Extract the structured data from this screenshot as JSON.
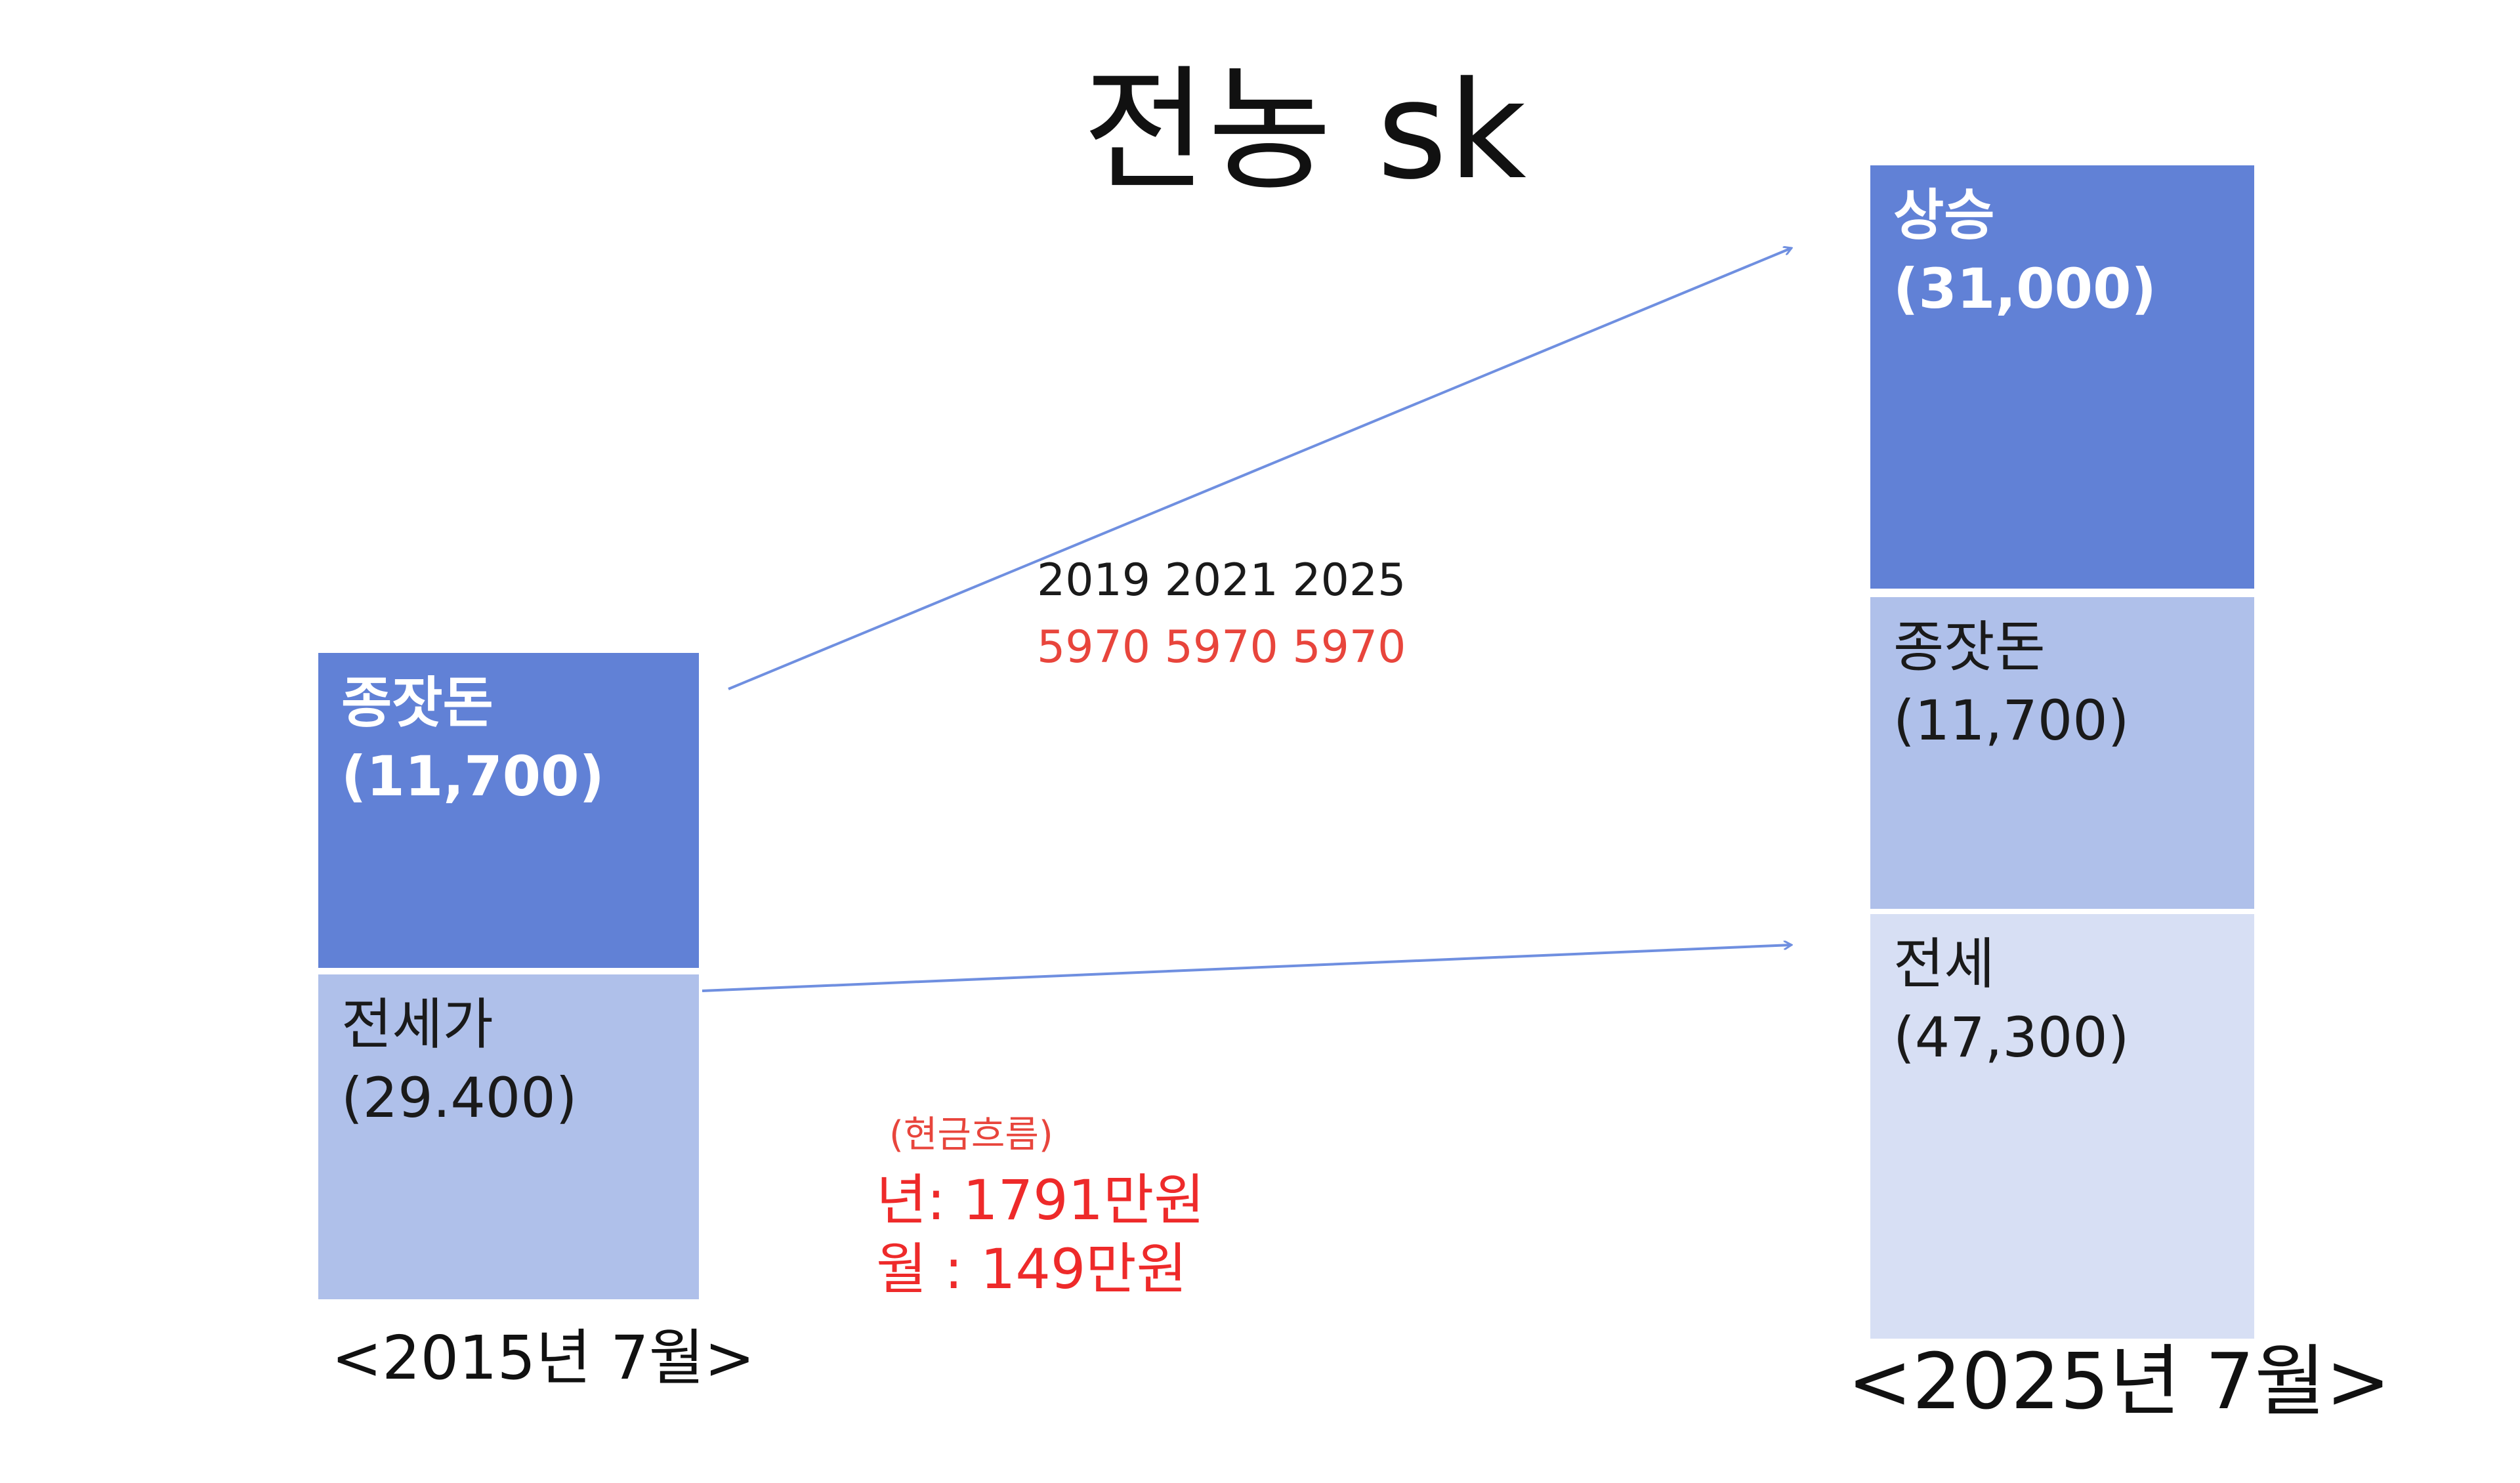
{
  "title": "전농 sk",
  "left_column": {
    "date_label": "<2015년 7월>",
    "top_block": {
      "name": "종잣돈",
      "amount": "(11,700)"
    },
    "bottom_block": {
      "name": "전세가",
      "amount": "(29.400)"
    }
  },
  "right_column": {
    "date_label": "<2025년 7월>",
    "top_block": {
      "name": "상승",
      "amount": "(31,000)"
    },
    "middle_block": {
      "name": "종잣돈",
      "amount": "(11,700)"
    },
    "bottom_block": {
      "name": "전세",
      "amount": "(47,300)"
    }
  },
  "arrow_annotation": {
    "years": "2019 2021 2025",
    "amounts": "5970 5970 5970"
  },
  "cash_flow": {
    "heading": "(현금흐름)",
    "yearly": "년: 1791만원",
    "monthly": "월 :  149만원"
  },
  "colors": {
    "dark_block": "#6181D6",
    "mid_block": "#AFC0EA",
    "light_block": "#D7DFF4",
    "arrow": "#6F8FE0",
    "highlight_red": "#EE2A2A"
  }
}
